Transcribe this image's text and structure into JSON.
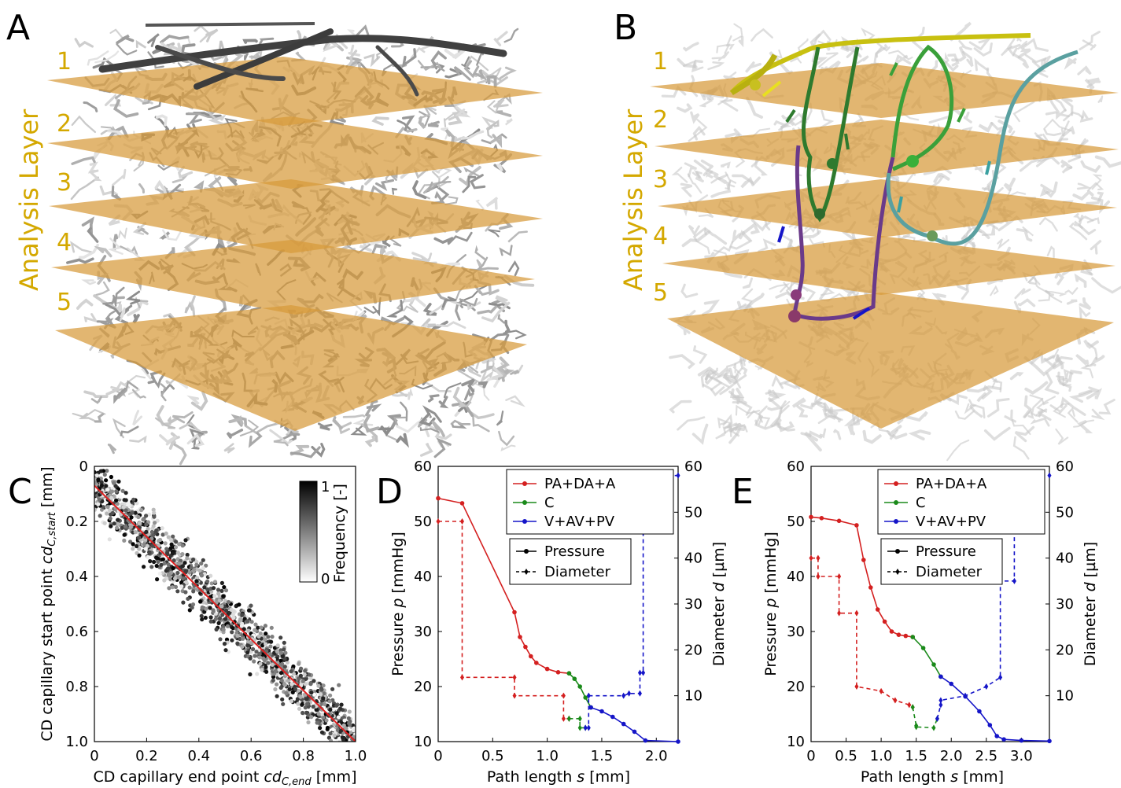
{
  "panels": {
    "A": {
      "letter": "A",
      "layer_title": "Analysis Layer",
      "layer_numbers": [
        "1",
        "2",
        "3",
        "4",
        "5"
      ]
    },
    "B": {
      "letter": "B",
      "layer_title": "Analysis Layer",
      "layer_numbers": [
        "1",
        "2",
        "3",
        "4",
        "5"
      ]
    }
  },
  "chart_data": [
    {
      "panel": "C",
      "type": "scatter",
      "xlabel": "CD capillary end point cd_C,end [mm]",
      "ylabel": "CD capillary start point cd_C,start [mm]",
      "xlim": [
        0,
        1.0
      ],
      "ylim": [
        1.0,
        0
      ],
      "xticks": [
        "0",
        "0.2",
        "0.4",
        "0.6",
        "0.8",
        "1.0"
      ],
      "yticks": [
        "0",
        "0.2",
        "0.4",
        "0.6",
        "0.8",
        "1.0"
      ],
      "colorbar": {
        "label": "Frequency [-]",
        "max": "1",
        "min": "0"
      },
      "regression_line": {
        "x": [
          0,
          1.0
        ],
        "y": [
          0.07,
          1.0
        ],
        "color": "#e02020"
      },
      "point_spread": 0.1,
      "point_count": 1400
    },
    {
      "panel": "D",
      "type": "line",
      "xlabel": "Path length s [mm]",
      "ylabel": "Pressure p [mmHg]",
      "y2label": "Diameter d [µm]",
      "xlim": [
        0,
        2.2
      ],
      "ylim": [
        10,
        60
      ],
      "y2lim": [
        0,
        60
      ],
      "xticks": [
        "0",
        "0.5",
        "1.0",
        "1.5",
        "2.0"
      ],
      "yticks": [
        "10",
        "20",
        "30",
        "40",
        "50",
        "60"
      ],
      "y2ticks": [
        "10",
        "20",
        "30",
        "40",
        "50",
        "60"
      ],
      "legend": {
        "location": "top-right",
        "series": [
          "PA+DA+A",
          "C",
          "V+AV+PV"
        ],
        "styles": [
          "Pressure",
          "Diameter"
        ]
      },
      "series": [
        {
          "name": "PA+DA+A",
          "color": "#d42020",
          "kind": "pressure",
          "x": [
            0,
            0.22,
            0.7,
            0.75,
            0.8,
            0.85,
            0.9,
            1.0,
            1.1,
            1.2
          ],
          "y": [
            54.2,
            53.3,
            33.5,
            29,
            27.2,
            25.5,
            24.3,
            23.2,
            22.6,
            22.4
          ]
        },
        {
          "name": "C",
          "color": "#1a8a1a",
          "kind": "pressure",
          "x": [
            1.2,
            1.25,
            1.3,
            1.35,
            1.4
          ],
          "y": [
            22.4,
            21.4,
            20,
            18,
            16.2
          ]
        },
        {
          "name": "V+AV+PV",
          "color": "#1515c8",
          "kind": "pressure",
          "x": [
            1.4,
            1.5,
            1.6,
            1.7,
            1.8,
            1.9,
            2.2
          ],
          "y": [
            16.2,
            15.5,
            14.5,
            13.2,
            11.8,
            10.2,
            10
          ]
        },
        {
          "name": "PA+DA+A",
          "color": "#d42020",
          "kind": "diameter",
          "x": [
            0,
            0.22,
            0.22,
            0.7,
            0.7,
            1.15,
            1.15,
            1.2
          ],
          "y": [
            48,
            48,
            14,
            14,
            10,
            10,
            5,
            5
          ]
        },
        {
          "name": "C",
          "color": "#1a8a1a",
          "kind": "diameter",
          "x": [
            1.2,
            1.3,
            1.3,
            1.35
          ],
          "y": [
            5,
            5,
            3,
            3
          ]
        },
        {
          "name": "V+AV+PV",
          "color": "#1515c8",
          "kind": "diameter",
          "x": [
            1.35,
            1.38,
            1.38,
            1.7,
            1.75,
            1.85,
            1.85,
            1.88,
            1.88,
            2.2
          ],
          "y": [
            3,
            3,
            10,
            10,
            10.5,
            10.5,
            15,
            15,
            58,
            58
          ]
        }
      ]
    },
    {
      "panel": "E",
      "type": "line",
      "xlabel": "Path length s [mm]",
      "ylabel": "Pressure p [mmHg]",
      "y2label": "Diameter d [µm]",
      "xlim": [
        0,
        3.4
      ],
      "ylim": [
        10,
        60
      ],
      "y2lim": [
        0,
        60
      ],
      "xticks": [
        "0",
        "0.5",
        "1.0",
        "1.5",
        "2.0",
        "2.5",
        "3.0"
      ],
      "yticks": [
        "10",
        "20",
        "30",
        "40",
        "50",
        "60"
      ],
      "y2ticks": [
        "10",
        "20",
        "30",
        "40",
        "50",
        "60"
      ],
      "legend": {
        "location": "top-right",
        "series": [
          "PA+DA+A",
          "C",
          "V+AV+PV"
        ],
        "styles": [
          "Pressure",
          "Diameter"
        ]
      },
      "series": [
        {
          "name": "PA+DA+A",
          "color": "#d42020",
          "kind": "pressure",
          "x": [
            0,
            0.15,
            0.4,
            0.65,
            0.75,
            0.85,
            0.95,
            1.05,
            1.15,
            1.25,
            1.35,
            1.45
          ],
          "y": [
            50.8,
            50.6,
            50.1,
            49.3,
            43,
            38,
            34,
            31.8,
            30,
            29.4,
            29.2,
            29
          ]
        },
        {
          "name": "C",
          "color": "#1a8a1a",
          "kind": "pressure",
          "x": [
            1.45,
            1.6,
            1.75,
            1.85
          ],
          "y": [
            29,
            27,
            24,
            21.8
          ]
        },
        {
          "name": "V+AV+PV",
          "color": "#1515c8",
          "kind": "pressure",
          "x": [
            1.85,
            2.0,
            2.2,
            2.4,
            2.55,
            2.65,
            2.75,
            3.0,
            3.4
          ],
          "y": [
            21.8,
            20.5,
            18.2,
            15.5,
            13,
            11,
            10.4,
            10.2,
            10.1
          ]
        },
        {
          "name": "PA+DA+A",
          "color": "#d42020",
          "kind": "diameter",
          "x": [
            0,
            0.1,
            0.1,
            0.4,
            0.4,
            0.65,
            0.65,
            1.0,
            1.2,
            1.4,
            1.45
          ],
          "y": [
            40,
            40,
            36,
            36,
            28,
            28,
            12,
            11,
            9,
            8,
            7.5
          ]
        },
        {
          "name": "C",
          "color": "#1a8a1a",
          "kind": "diameter",
          "x": [
            1.45,
            1.5,
            1.5,
            1.75,
            1.8
          ],
          "y": [
            7.5,
            3.5,
            3.2,
            3,
            5
          ]
        },
        {
          "name": "V+AV+PV",
          "color": "#1515c8",
          "kind": "diameter",
          "x": [
            1.8,
            1.85,
            1.85,
            2.2,
            2.5,
            2.7,
            2.7,
            2.9,
            2.9,
            3.4
          ],
          "y": [
            5,
            8,
            9,
            10,
            12,
            14,
            35,
            35,
            58,
            58
          ]
        }
      ]
    }
  ]
}
